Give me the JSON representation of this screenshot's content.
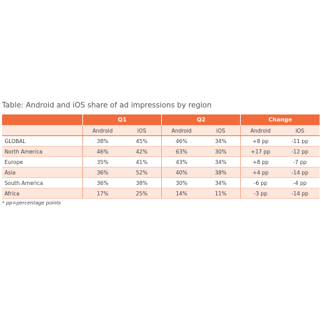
{
  "title": "Table: Android and iOS share of ad impressions by region",
  "table": {
    "groups": [
      "Q1",
      "Q2",
      "Change"
    ],
    "subheaders": [
      "Android",
      "iOS",
      "Android",
      "iOS",
      "Android",
      "iOS"
    ],
    "rows": [
      [
        "GLOBAL",
        "38%",
        "45%",
        "46%",
        "34%",
        "+8 pp",
        "-11 pp"
      ],
      [
        "North America",
        "46%",
        "42%",
        "63%",
        "30%",
        "+17 pp",
        "-12 pp"
      ],
      [
        "Europe",
        "35%",
        "41%",
        "43%",
        "34%",
        "+8 pp",
        "-7 pp"
      ],
      [
        "Asia",
        "36%",
        "52%",
        "40%",
        "38%",
        "+4 pp",
        "-14 pp"
      ],
      [
        "South America",
        "36%",
        "38%",
        "30%",
        "34%",
        "-6 pp",
        "-4 pp"
      ],
      [
        "Africa",
        "17%",
        "25%",
        "14%",
        "11%",
        "-3 pp",
        "-14 pp"
      ]
    ]
  },
  "footnote": "* pp=percentage points"
}
